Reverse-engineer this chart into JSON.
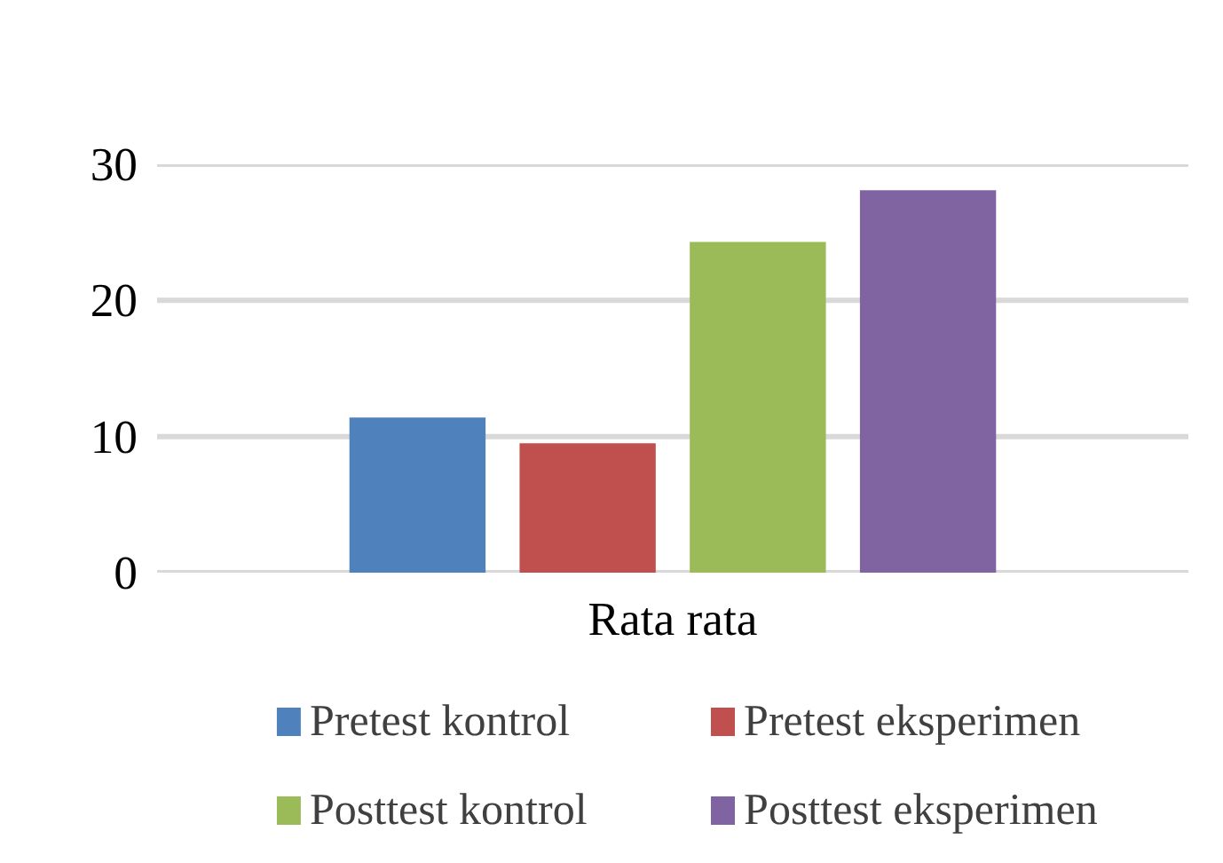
{
  "chart_data": {
    "type": "bar",
    "categories": [
      "Rata rata"
    ],
    "series": [
      {
        "name": "Pretest kontrol",
        "color": "#4f81bd",
        "values": [
          11.4
        ]
      },
      {
        "name": "Pretest eksperimen",
        "color": "#c0504d",
        "values": [
          9.5
        ]
      },
      {
        "name": "Posttest kontrol",
        "color": "#9bbb59",
        "values": [
          24.3
        ]
      },
      {
        "name": "Posttest eksperimen",
        "color": "#8064a2",
        "values": [
          28.1
        ]
      }
    ],
    "ylim": [
      0,
      30
    ],
    "yticks": [
      0,
      10,
      20,
      30
    ],
    "grid": "y",
    "legend": "bottom"
  }
}
